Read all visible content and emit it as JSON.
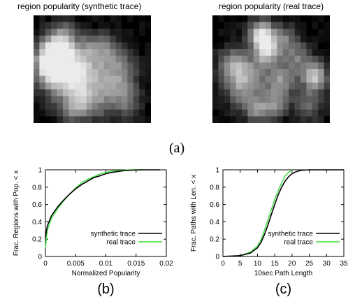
{
  "panel_a": {
    "label": "(a)",
    "left_title": "region popularity (synthetic trace)",
    "right_title": "region popularity (real trace)"
  },
  "chart_data": [
    {
      "type": "heatmap",
      "title": "region popularity (synthetic trace)",
      "grid_rows": 16,
      "grid_cols": 20,
      "colormap": "grayscale",
      "blobs": [
        [
          3.5,
          5,
          3,
          1.0
        ],
        [
          2.5,
          7,
          2.5,
          0.8
        ],
        [
          4.5,
          9,
          4,
          0.5
        ],
        [
          6.5,
          8,
          3,
          0.45
        ],
        [
          10,
          8,
          3.5,
          0.45
        ],
        [
          14,
          7,
          3,
          0.4
        ],
        [
          8,
          12.5,
          2.5,
          0.5
        ],
        [
          12,
          12,
          3,
          0.35
        ],
        [
          6,
          13.5,
          2,
          0.3
        ],
        [
          16,
          13,
          2,
          0.25
        ],
        [
          9,
          4,
          2,
          0.35
        ],
        [
          12,
          4,
          2,
          0.3
        ],
        [
          5,
          2,
          2,
          0.25
        ],
        [
          15,
          10.5,
          2.5,
          0.3
        ]
      ]
    },
    {
      "type": "heatmap",
      "title": "region popularity (real trace)",
      "grid_rows": 16,
      "grid_cols": 20,
      "colormap": "grayscale",
      "blobs": [
        [
          8,
          2.5,
          2.2,
          1.0
        ],
        [
          9,
          5,
          2,
          0.7
        ],
        [
          3,
          7,
          2.5,
          0.6
        ],
        [
          6,
          8.5,
          3,
          0.5
        ],
        [
          11,
          9.5,
          2.5,
          0.55
        ],
        [
          7,
          13.5,
          2,
          0.55
        ],
        [
          17,
          8.5,
          2,
          0.8
        ],
        [
          16,
          12.5,
          2.5,
          0.4
        ],
        [
          14,
          6,
          2.5,
          0.45
        ],
        [
          10,
          13,
          2,
          0.5
        ],
        [
          4,
          11,
          2.5,
          0.35
        ],
        [
          12,
          3,
          2,
          0.4
        ]
      ]
    },
    {
      "type": "line",
      "panel_label": "(b)",
      "xlabel": "Normalized Popularity",
      "ylabel": "Frac. Regions with Pop. < x",
      "xlim": [
        0,
        0.02
      ],
      "ylim": [
        0,
        1
      ],
      "xticks": [
        "0",
        "0.005",
        "0.01",
        "0.015",
        "0.02"
      ],
      "yticks": [
        "0",
        "0.2",
        "0.4",
        "0.6",
        "0.8",
        "1"
      ],
      "legend_position": "bottom-right",
      "series": [
        {
          "name": "synthetic trace",
          "color": "#000000",
          "x": [
            0,
            0.0003,
            0.001,
            0.002,
            0.003,
            0.004,
            0.005,
            0.006,
            0.007,
            0.008,
            0.009,
            0.01,
            0.011,
            0.012,
            0.013,
            0.014,
            0.015,
            0.016,
            0.017,
            0.018,
            0.019
          ],
          "y": [
            0.22,
            0.35,
            0.47,
            0.57,
            0.65,
            0.72,
            0.78,
            0.83,
            0.87,
            0.91,
            0.93,
            0.955,
            0.97,
            0.98,
            0.99,
            0.995,
            0.998,
            1.0,
            1.0,
            1.0,
            1.0
          ]
        },
        {
          "name": "real trace",
          "color": "#33dd33",
          "x": [
            0,
            0.0003,
            0.001,
            0.002,
            0.003,
            0.004,
            0.005,
            0.006,
            0.007,
            0.008,
            0.009,
            0.01,
            0.011,
            0.012,
            0.013,
            0.014,
            0.015,
            0.016
          ],
          "y": [
            0.1,
            0.3,
            0.44,
            0.55,
            0.64,
            0.72,
            0.79,
            0.85,
            0.89,
            0.92,
            0.95,
            0.97,
            0.985,
            0.99,
            0.995,
            1.0,
            1.0,
            1.0
          ]
        }
      ]
    },
    {
      "type": "line",
      "panel_label": "(c)",
      "xlabel": "10sec Path Length",
      "ylabel": "Frac. Paths with Len. < x",
      "xlim": [
        0,
        35
      ],
      "ylim": [
        0,
        1
      ],
      "xticks": [
        "0",
        "5",
        "10",
        "15",
        "20",
        "25",
        "30",
        "35"
      ],
      "yticks": [
        "0",
        "0.2",
        "0.4",
        "0.6",
        "0.8",
        "1"
      ],
      "legend_position": "bottom-right",
      "series": [
        {
          "name": "synthetic trace",
          "color": "#000000",
          "x": [
            0,
            5,
            8,
            10,
            11,
            12,
            13,
            14,
            15,
            16,
            17,
            18,
            19,
            20,
            21,
            22,
            23,
            25,
            27,
            30,
            35
          ],
          "y": [
            0,
            0.01,
            0.04,
            0.1,
            0.16,
            0.25,
            0.36,
            0.48,
            0.6,
            0.71,
            0.8,
            0.87,
            0.92,
            0.955,
            0.975,
            0.988,
            0.995,
            1.0,
            1.0,
            1.0,
            1.0
          ]
        },
        {
          "name": "real trace",
          "color": "#33dd33",
          "x": [
            0,
            5,
            8,
            10,
            11,
            12,
            13,
            14,
            15,
            16,
            17,
            18,
            19,
            20
          ],
          "y": [
            0,
            0.01,
            0.05,
            0.12,
            0.19,
            0.3,
            0.42,
            0.54,
            0.66,
            0.76,
            0.85,
            0.93,
            0.97,
            1.0
          ]
        }
      ]
    }
  ]
}
